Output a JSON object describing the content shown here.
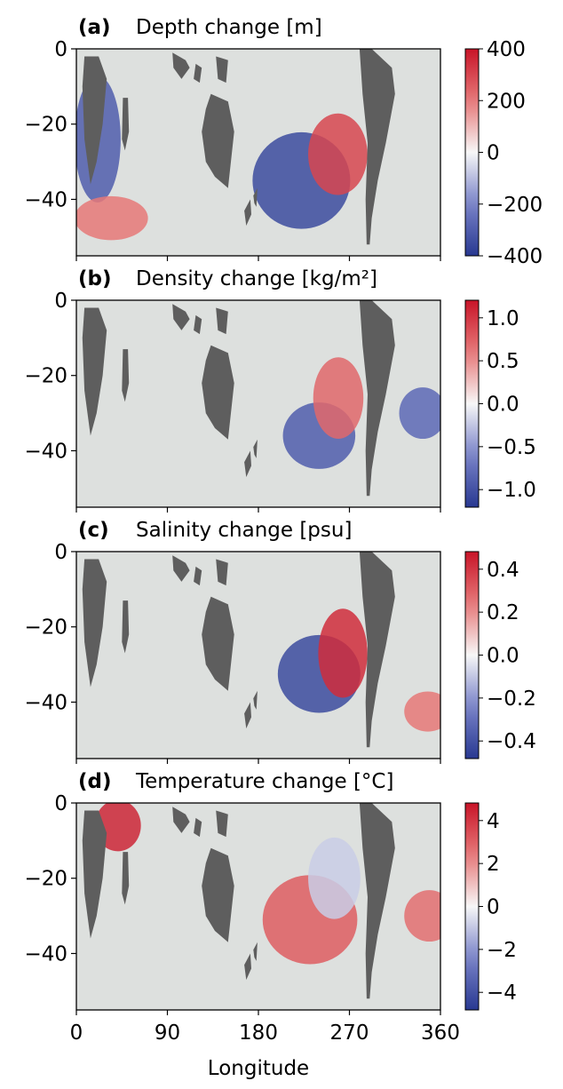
{
  "figure": {
    "xlabel": "Longitude",
    "xticks": [
      0,
      90,
      180,
      270,
      360
    ],
    "xlim": [
      0,
      360
    ],
    "ylim": [
      -55,
      0
    ],
    "yticks": [
      0,
      -20,
      -40
    ],
    "ocean_color": "#dde0de",
    "land_color": "#5e5e5e"
  },
  "chart_data": [
    {
      "type": "heatmap",
      "panel_label": "(a)",
      "title": "Depth change [m]",
      "colorbar": {
        "ticks": [
          "400",
          "200",
          "0",
          "−200",
          "−400"
        ],
        "vmin": -400,
        "vmax": 400
      },
      "fields": [
        {
          "name": "south-atlantic",
          "lon": [
            14,
            28
          ],
          "lat": [
            -10,
            -38
          ],
          "value": -300
        },
        {
          "name": "southern-indian",
          "lon": [
            14,
            55
          ],
          "lat": [
            -42,
            -48
          ],
          "value": 200
        },
        {
          "name": "pacific-interior",
          "lon": [
            190,
            255
          ],
          "lat": [
            -25,
            -45
          ],
          "value": -350
        },
        {
          "name": "pacific-eastern-boundary",
          "lon": [
            272,
            245
          ],
          "lat": [
            -20,
            -36
          ],
          "value": 300
        }
      ]
    },
    {
      "type": "heatmap",
      "panel_label": "(b)",
      "title": "Density change [kg/m²]",
      "colorbar": {
        "ticks": [
          "1.0",
          "0.5",
          "0.0",
          "−0.5",
          "−1.0"
        ],
        "vmin": -1.2,
        "vmax": 1.2
      },
      "fields": [
        {
          "name": "pacific-interior",
          "lon": [
            220,
            260
          ],
          "lat": [
            -30,
            -42
          ],
          "value": -0.9
        },
        {
          "name": "pacific-eastern-boundary",
          "lon": [
            268,
            250
          ],
          "lat": [
            -18,
            -34
          ],
          "value": 0.7
        },
        {
          "name": "atlantic-southeast",
          "lon": [
            350,
            335
          ],
          "lat": [
            -26,
            -34
          ],
          "value": -0.8
        }
      ]
    },
    {
      "type": "heatmap",
      "panel_label": "(c)",
      "title": "Salinity change [psu]",
      "colorbar": {
        "ticks": [
          "0.4",
          "0.2",
          "0.0",
          "−0.2",
          "−0.4"
        ],
        "vmin": -0.4,
        "vmax": 0.4
      },
      "fields": [
        {
          "name": "pacific-interior",
          "lon": [
            215,
            265
          ],
          "lat": [
            -25,
            -40
          ],
          "value": -0.35
        },
        {
          "name": "pacific-eastern-boundary",
          "lon": [
            272,
            255
          ],
          "lat": [
            -18,
            -36
          ],
          "value": 0.35
        },
        {
          "name": "atlantic-south",
          "lon": [
            340,
            355
          ],
          "lat": [
            -40,
            -45
          ],
          "value": 0.2
        }
      ]
    },
    {
      "type": "heatmap",
      "panel_label": "(d)",
      "title": "Temperature change [°C]",
      "colorbar": {
        "ticks": [
          "4",
          "2",
          "0",
          "−2",
          "−4"
        ],
        "vmin": -5.5,
        "vmax": 5.5
      },
      "fields": [
        {
          "name": "pacific-interior",
          "lon": [
            200,
            262
          ],
          "lat": [
            -22,
            -40
          ],
          "value": 3.5
        },
        {
          "name": "arabian-sea",
          "lon": [
            34,
            48
          ],
          "lat": [
            -2,
            -10
          ],
          "value": 5.0
        },
        {
          "name": "pacific-eastern-boundary",
          "lon": [
            245,
            265
          ],
          "lat": [
            -12,
            -28
          ],
          "value": -1.0
        },
        {
          "name": "atlantic-southeast",
          "lon": [
            340,
            358
          ],
          "lat": [
            -26,
            -34
          ],
          "value": 3.0
        }
      ]
    }
  ]
}
